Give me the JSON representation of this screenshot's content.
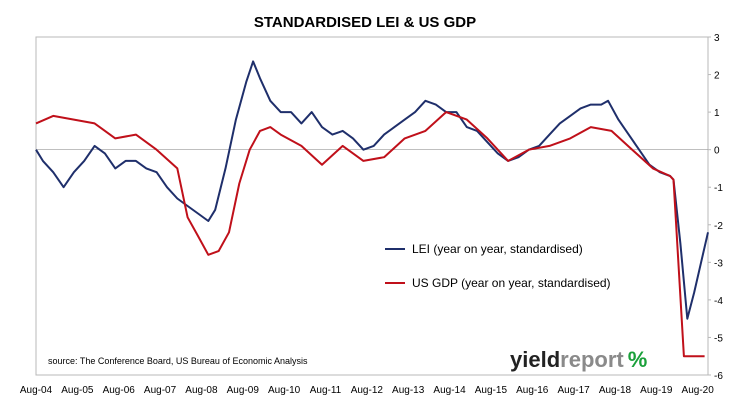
{
  "chart_data": {
    "type": "line",
    "title": "STANDARDISED LEI & US GDP",
    "xlabel": "",
    "ylabel": "",
    "ylim": [
      -6,
      3
    ],
    "y_ticks": [
      3,
      2,
      1,
      0,
      -1,
      -2,
      -3,
      -4,
      -5,
      -6
    ],
    "x_tick_labels": [
      "Aug-04",
      "Aug-05",
      "Aug-06",
      "Aug-07",
      "Aug-08",
      "Aug-09",
      "Aug-10",
      "Aug-11",
      "Aug-12",
      "Aug-13",
      "Aug-14",
      "Aug-15",
      "Aug-16",
      "Aug-17",
      "Aug-18",
      "Aug-19",
      "Aug-20"
    ],
    "x_range": [
      "2004-08",
      "2020-11"
    ],
    "grid": false,
    "legend_position": "center-right",
    "series": [
      {
        "name": "LEI (year on year, standardised)",
        "color": "#1f2f6b",
        "points": [
          [
            "2004-08",
            0.0
          ],
          [
            "2004-10",
            -0.3
          ],
          [
            "2005-01",
            -0.6
          ],
          [
            "2005-04",
            -1.0
          ],
          [
            "2005-07",
            -0.6
          ],
          [
            "2005-10",
            -0.3
          ],
          [
            "2006-01",
            0.1
          ],
          [
            "2006-04",
            -0.1
          ],
          [
            "2006-07",
            -0.5
          ],
          [
            "2006-10",
            -0.3
          ],
          [
            "2007-01",
            -0.3
          ],
          [
            "2007-04",
            -0.5
          ],
          [
            "2007-07",
            -0.6
          ],
          [
            "2007-10",
            -1.0
          ],
          [
            "2008-01",
            -1.3
          ],
          [
            "2008-04",
            -1.5
          ],
          [
            "2008-07",
            -1.7
          ],
          [
            "2008-10",
            -1.9
          ],
          [
            "2008-12",
            -1.6
          ],
          [
            "2009-03",
            -0.5
          ],
          [
            "2009-06",
            0.8
          ],
          [
            "2009-09",
            1.8
          ],
          [
            "2009-11",
            2.35
          ],
          [
            "2010-01",
            1.9
          ],
          [
            "2010-04",
            1.3
          ],
          [
            "2010-07",
            1.0
          ],
          [
            "2010-10",
            1.0
          ],
          [
            "2011-01",
            0.7
          ],
          [
            "2011-04",
            1.0
          ],
          [
            "2011-07",
            0.6
          ],
          [
            "2011-10",
            0.4
          ],
          [
            "2012-01",
            0.5
          ],
          [
            "2012-04",
            0.3
          ],
          [
            "2012-07",
            0.0
          ],
          [
            "2012-10",
            0.1
          ],
          [
            "2013-01",
            0.4
          ],
          [
            "2013-04",
            0.6
          ],
          [
            "2013-07",
            0.8
          ],
          [
            "2013-10",
            1.0
          ],
          [
            "2014-01",
            1.3
          ],
          [
            "2014-04",
            1.2
          ],
          [
            "2014-07",
            1.0
          ],
          [
            "2014-10",
            1.0
          ],
          [
            "2015-01",
            0.6
          ],
          [
            "2015-04",
            0.5
          ],
          [
            "2015-07",
            0.2
          ],
          [
            "2015-10",
            -0.1
          ],
          [
            "2016-01",
            -0.3
          ],
          [
            "2016-04",
            -0.2
          ],
          [
            "2016-07",
            0.0
          ],
          [
            "2016-10",
            0.1
          ],
          [
            "2017-01",
            0.4
          ],
          [
            "2017-04",
            0.7
          ],
          [
            "2017-07",
            0.9
          ],
          [
            "2017-10",
            1.1
          ],
          [
            "2018-01",
            1.2
          ],
          [
            "2018-04",
            1.2
          ],
          [
            "2018-06",
            1.3
          ],
          [
            "2018-09",
            0.8
          ],
          [
            "2018-12",
            0.4
          ],
          [
            "2019-03",
            0.0
          ],
          [
            "2019-06",
            -0.4
          ],
          [
            "2019-09",
            -0.6
          ],
          [
            "2019-12",
            -0.7
          ],
          [
            "2020-01",
            -0.8
          ],
          [
            "2020-03",
            -2.5
          ],
          [
            "2020-05",
            -4.5
          ],
          [
            "2020-07",
            -3.8
          ],
          [
            "2020-09",
            -3.0
          ],
          [
            "2020-11",
            -2.2
          ]
        ]
      },
      {
        "name": "US GDP (year on year, standardised)",
        "color": "#c0101a",
        "points": [
          [
            "2004-08",
            0.7
          ],
          [
            "2005-01",
            0.9
          ],
          [
            "2005-07",
            0.8
          ],
          [
            "2006-01",
            0.7
          ],
          [
            "2006-07",
            0.3
          ],
          [
            "2007-01",
            0.4
          ],
          [
            "2007-07",
            0.0
          ],
          [
            "2008-01",
            -0.5
          ],
          [
            "2008-04",
            -1.8
          ],
          [
            "2008-07",
            -2.3
          ],
          [
            "2008-10",
            -2.8
          ],
          [
            "2009-01",
            -2.7
          ],
          [
            "2009-04",
            -2.2
          ],
          [
            "2009-07",
            -0.9
          ],
          [
            "2009-10",
            0.0
          ],
          [
            "2010-01",
            0.5
          ],
          [
            "2010-04",
            0.6
          ],
          [
            "2010-07",
            0.4
          ],
          [
            "2011-01",
            0.1
          ],
          [
            "2011-07",
            -0.4
          ],
          [
            "2012-01",
            0.1
          ],
          [
            "2012-07",
            -0.3
          ],
          [
            "2013-01",
            -0.2
          ],
          [
            "2013-07",
            0.3
          ],
          [
            "2014-01",
            0.5
          ],
          [
            "2014-07",
            1.0
          ],
          [
            "2015-01",
            0.8
          ],
          [
            "2015-07",
            0.3
          ],
          [
            "2016-01",
            -0.3
          ],
          [
            "2016-07",
            0.0
          ],
          [
            "2017-01",
            0.1
          ],
          [
            "2017-07",
            0.3
          ],
          [
            "2018-01",
            0.6
          ],
          [
            "2018-07",
            0.5
          ],
          [
            "2019-01",
            0.0
          ],
          [
            "2019-07",
            -0.5
          ],
          [
            "2019-12",
            -0.7
          ],
          [
            "2020-01",
            -0.8
          ],
          [
            "2020-04",
            -5.5
          ],
          [
            "2020-10",
            -5.5
          ]
        ]
      }
    ],
    "source_note": "source: The Conference Board, US Bureau of Economic Analysis"
  },
  "logo": {
    "part1": "yield",
    "part2": "report",
    "symbol": "%",
    "color_dark": "#222222",
    "color_accent": "#8a8a8a",
    "symbol_color": "#1aa03a"
  }
}
